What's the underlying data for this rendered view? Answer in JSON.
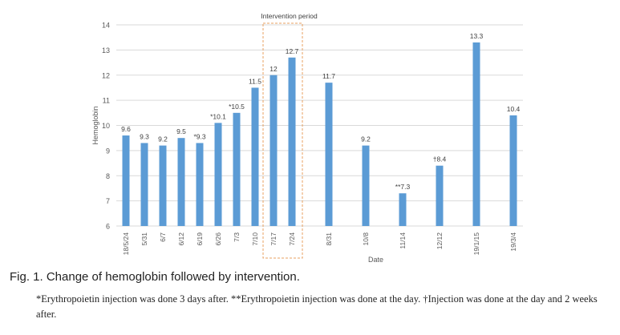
{
  "chart_data": {
    "type": "bar",
    "xlabel": "Date",
    "ylabel": "Hemoglobin",
    "ylim": [
      6,
      14
    ],
    "yticks": [
      "6",
      "7",
      "8",
      "9",
      "10",
      "11",
      "12",
      "13",
      "14"
    ],
    "grid": true,
    "color": "#5b9bd5",
    "categories": [
      "18/5/24",
      "5/31",
      "6/7",
      "6/12",
      "6/19",
      "6/26",
      "7/3",
      "7/10",
      "7/17",
      "7/24",
      "8/31",
      "10/8",
      "11/14",
      "12/12",
      "19/1/15",
      "19/3/4"
    ],
    "values": [
      9.6,
      9.3,
      9.2,
      9.5,
      9.3,
      10.1,
      10.5,
      11.5,
      12,
      12.7,
      11.7,
      9.2,
      7.3,
      8.4,
      13.3,
      10.4
    ],
    "data_labels": [
      "9.6",
      "9.3",
      "9.2",
      "9.5",
      "*9.3",
      "*10.1",
      "*10.5",
      "11.5",
      "12",
      "12.7",
      "11.7",
      "9.2",
      "**7.3",
      "†8.4",
      "13.3",
      "10.4"
    ],
    "annotation": {
      "label": "Intervention period",
      "categories": [
        "7/17",
        "7/24"
      ]
    }
  },
  "caption": "Fig. 1. Change of hemoglobin followed by intervention.",
  "footnote": "*Erythropoietin injection was done 3 days after. **Erythropoietin injection was done at the day. †Injection was done at the day and 2 weeks after."
}
